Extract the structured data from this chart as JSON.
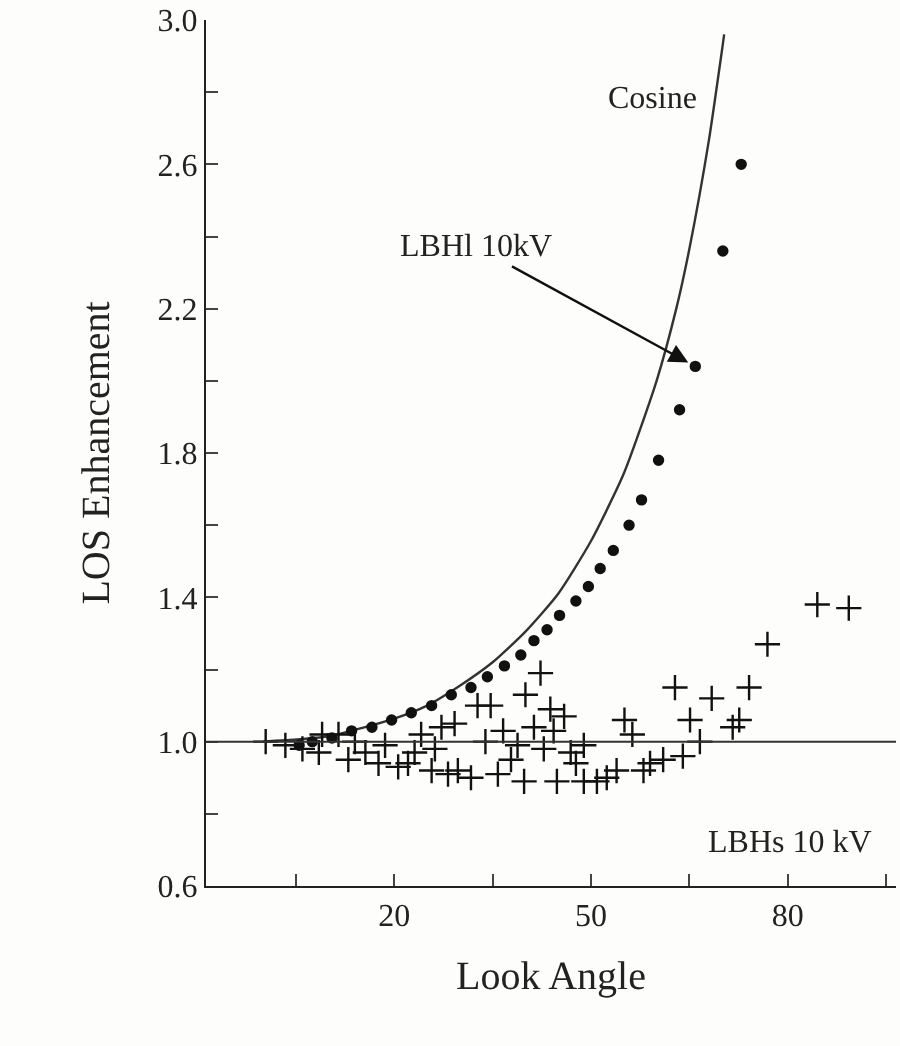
{
  "chart_data": {
    "type": "scatter",
    "xlabel": "Look Angle",
    "ylabel": "LOS Enhancement",
    "xlim": [
      -8.7,
      96.5
    ],
    "xticks": [
      {
        "value": 5,
        "label": null
      },
      20,
      {
        "value": 35,
        "label": null
      },
      50,
      {
        "value": 65,
        "label": null
      },
      80,
      {
        "value": 95,
        "label": null
      }
    ],
    "ylim": [
      0.6,
      3.0
    ],
    "yticks": [
      0.6,
      {
        "value": 0.8,
        "label": null
      },
      {
        "value": 1,
        "label": "1.0"
      },
      {
        "value": 1.2,
        "label": null
      },
      1.4,
      {
        "value": 1.6,
        "label": null
      },
      1.8,
      {
        "value": 2.0,
        "label": null
      },
      2.2,
      {
        "value": 2.4,
        "label": null
      },
      2.6,
      {
        "value": 2.8,
        "label": null
      },
      {
        "value": 3,
        "label": "3.0"
      }
    ],
    "grid": false,
    "legend": false,
    "ref_lines": [
      {
        "axis": "y",
        "value": 1.0,
        "label": null,
        "color": "#333333",
        "line_style": "solid"
      }
    ],
    "series": [
      {
        "name": "Cosine",
        "type": "line",
        "color": "#333333",
        "marker": "none",
        "line_style": "solid",
        "x": [
          0,
          10,
          20,
          25,
          30,
          35,
          40,
          45,
          50,
          55,
          60,
          63,
          65,
          68,
          70,
          70.3
        ],
        "values": [
          1.0,
          1.015,
          1.064,
          1.1,
          1.155,
          1.22,
          1.305,
          1.41,
          1.556,
          1.743,
          2.0,
          2.2,
          2.366,
          2.67,
          2.92,
          2.96
        ]
      },
      {
        "name": "LBHl 10kV",
        "type": "scatter",
        "color": "#111111",
        "marker": "circle",
        "x": [
          5.5,
          7.5,
          10.5,
          13.5,
          16.6,
          19.6,
          22.6,
          25.7,
          28.7,
          31.7,
          34.2,
          36.8,
          39.3,
          41.3,
          43.3,
          45.2,
          47.7,
          49.6,
          51.4,
          53.4,
          55.8,
          57.7,
          60.3,
          63.5,
          65.9,
          70.1,
          72.9
        ],
        "values": [
          0.99,
          1.0,
          1.01,
          1.03,
          1.04,
          1.06,
          1.08,
          1.1,
          1.13,
          1.15,
          1.18,
          1.21,
          1.24,
          1.28,
          1.31,
          1.35,
          1.39,
          1.43,
          1.48,
          1.53,
          1.6,
          1.67,
          1.78,
          1.92,
          2.04,
          2.36,
          2.6
        ]
      },
      {
        "name": "LBHs 10 kV",
        "type": "scatter",
        "color": "#111111",
        "marker": "cross",
        "x": [
          0.4,
          3.4,
          6.0,
          8.5,
          9.0,
          11.5,
          13.0,
          14.0,
          15.6,
          17.6,
          18.6,
          20.6,
          22.1,
          23.1,
          24.1,
          25.7,
          26.2,
          27.2,
          28.2,
          29.2,
          29.7,
          31.7,
          32.7,
          33.9,
          34.7,
          35.8,
          36.6,
          37.8,
          38.8,
          39.8,
          40.0,
          41.3,
          42.3,
          42.8,
          43.8,
          44.3,
          44.8,
          45.9,
          46.9,
          47.7,
          48.9,
          48.9,
          50.9,
          52.4,
          53.9,
          55.1,
          56.3,
          58.0,
          59.0,
          61.0,
          62.8,
          64.0,
          65.1,
          66.6,
          68.4,
          71.6,
          72.6,
          74.1,
          76.9,
          84.5,
          89.3
        ],
        "values": [
          1.0,
          0.99,
          0.98,
          0.97,
          1.02,
          1.02,
          0.95,
          1.0,
          0.97,
          0.94,
          0.99,
          0.93,
          0.94,
          0.97,
          1.02,
          0.92,
          0.98,
          1.04,
          0.91,
          1.05,
          0.92,
          0.9,
          1.1,
          1.0,
          1.1,
          0.91,
          1.03,
          0.95,
          0.99,
          0.89,
          1.13,
          1.04,
          1.19,
          0.98,
          1.09,
          1.03,
          0.89,
          1.07,
          0.97,
          0.94,
          0.99,
          0.89,
          0.89,
          0.9,
          0.92,
          1.06,
          1.02,
          0.92,
          0.94,
          0.95,
          1.15,
          0.96,
          1.06,
          1.0,
          1.12,
          1.04,
          1.06,
          1.15,
          1.27,
          1.38,
          1.37
        ]
      }
    ]
  }
}
